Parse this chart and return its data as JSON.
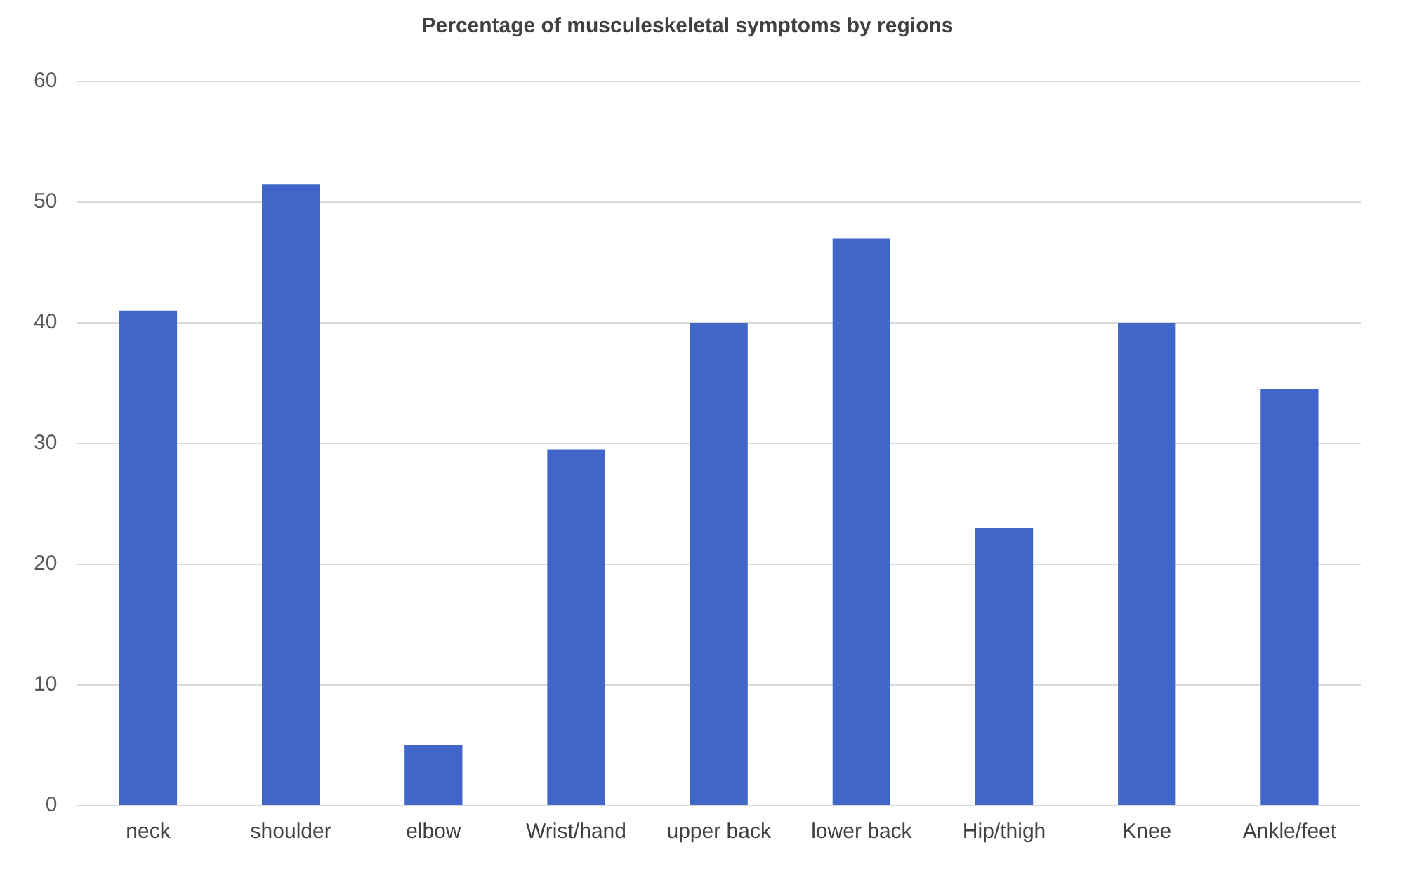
{
  "chart_data": {
    "type": "bar",
    "title": "Percentage of musculeskeletal symptoms by regions",
    "categories": [
      "neck",
      "shoulder",
      "elbow",
      "Wrist/hand",
      "upper back",
      "lower back",
      "Hip/thigh",
      "Knee",
      "Ankle/feet"
    ],
    "values": [
      41,
      51.5,
      5,
      29.5,
      40,
      47,
      23,
      40,
      34.5
    ],
    "color": "#3f66c8",
    "ylim": [
      0,
      60
    ],
    "yticks": [
      0,
      10,
      20,
      30,
      40,
      50,
      60
    ],
    "grid": "y",
    "legend": false
  }
}
